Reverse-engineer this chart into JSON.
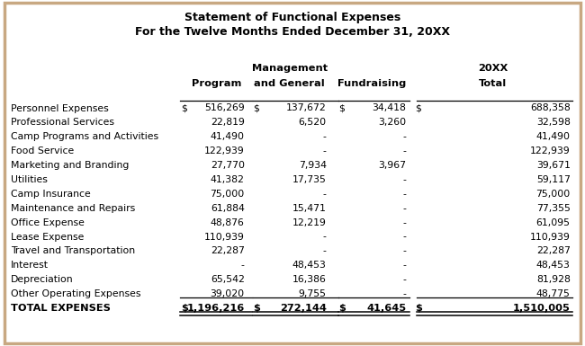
{
  "title1": "Statement of Functional Expenses",
  "title2": "For the Twelve Months Ended December 31, 20XX",
  "rows": [
    [
      "Personnel Expenses",
      "$",
      "516,269",
      "$",
      "137,672",
      "$",
      "34,418",
      "$",
      "688,358"
    ],
    [
      "Professional Services",
      "",
      "22,819",
      "",
      "6,520",
      "",
      "3,260",
      "",
      "32,598"
    ],
    [
      "Camp Programs and Activities",
      "",
      "41,490",
      "",
      "-",
      "",
      "-",
      "",
      "41,490"
    ],
    [
      "Food Service",
      "",
      "122,939",
      "",
      "-",
      "",
      "-",
      "",
      "122,939"
    ],
    [
      "Marketing and Branding",
      "",
      "27,770",
      "",
      "7,934",
      "",
      "3,967",
      "",
      "39,671"
    ],
    [
      "Utilities",
      "",
      "41,382",
      "",
      "17,735",
      "",
      "-",
      "",
      "59,117"
    ],
    [
      "Camp Insurance",
      "",
      "75,000",
      "",
      "-",
      "",
      "-",
      "",
      "75,000"
    ],
    [
      "Maintenance and Repairs",
      "",
      "61,884",
      "",
      "15,471",
      "",
      "-",
      "",
      "77,355"
    ],
    [
      "Office Expense",
      "",
      "48,876",
      "",
      "12,219",
      "",
      "-",
      "",
      "61,095"
    ],
    [
      "Lease Expense",
      "",
      "110,939",
      "",
      "-",
      "",
      "-",
      "",
      "110,939"
    ],
    [
      "Travel and Transportation",
      "",
      "22,287",
      "",
      "-",
      "",
      "-",
      "",
      "22,287"
    ],
    [
      "Interest",
      "",
      "-",
      "",
      "48,453",
      "",
      "-",
      "",
      "48,453"
    ],
    [
      "Depreciation",
      "",
      "65,542",
      "",
      "16,386",
      "",
      "-",
      "",
      "81,928"
    ],
    [
      "Other Operating Expenses",
      "",
      "39,020",
      "",
      "9,755",
      "",
      "-",
      "",
      "48,775"
    ]
  ],
  "total_row": [
    "TOTAL EXPENSES",
    "$",
    "1,196,216",
    "$",
    "272,144",
    "$",
    "41,645",
    "$",
    "1,510,005"
  ],
  "bg_color": "#FFFFFF",
  "border_color": "#C8A882",
  "text_color": "#000000",
  "title_fontsize": 9.0,
  "header_fontsize": 8.2,
  "data_fontsize": 7.8,
  "total_fontsize": 8.2
}
